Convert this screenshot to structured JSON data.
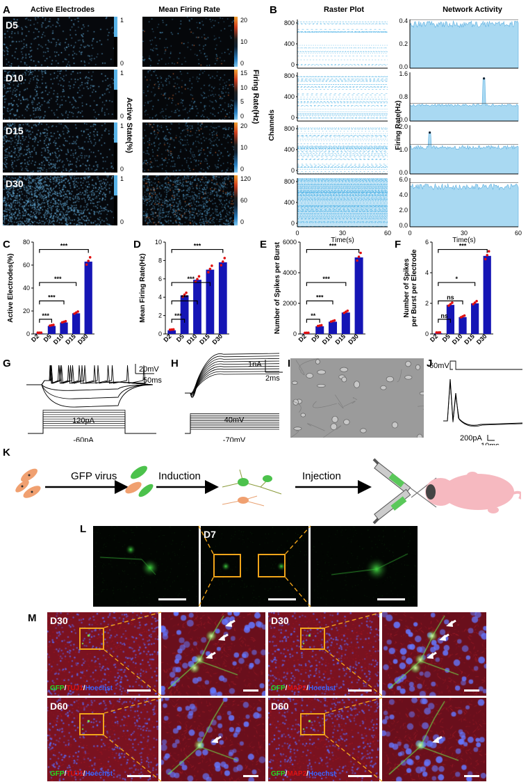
{
  "panels": {
    "A": {
      "letter": "A",
      "title_left": "Active Electrodes",
      "title_right": "Mean Firing Rate",
      "days": [
        "D5",
        "D10",
        "D15",
        "D30"
      ],
      "left_scale": {
        "top": "1",
        "bottom": "0",
        "axis_label": "Active State(%)"
      },
      "right_scales": [
        {
          "ticks": [
            "20",
            "10",
            "0"
          ]
        },
        {
          "ticks": [
            "15",
            "10",
            "5",
            "0"
          ]
        },
        {
          "ticks": [
            "20",
            "10",
            "0"
          ]
        },
        {
          "ticks": [
            "120",
            "60",
            "0"
          ]
        }
      ],
      "right_axis_label": "Firing Rate(Hz)"
    },
    "B": {
      "letter": "B",
      "title_left": "Raster Plot",
      "title_right": "Network Activity",
      "ylabel_left": "Channels",
      "ylabel_right": "Firing Rate(Hz)",
      "xlabel": "Time(s)",
      "raster_yticks": [
        "800",
        "400",
        "0"
      ],
      "x_ticks": [
        "0",
        "30",
        "60"
      ],
      "net_yticks": [
        [
          "0.4",
          "0.2",
          "0.0"
        ],
        [
          "1.6",
          "0.8",
          "0.0"
        ],
        [
          "2.0",
          "1.0",
          "0.0"
        ],
        [
          "6.0",
          "4.0",
          "2.0",
          "0.0"
        ]
      ]
    },
    "C": {
      "letter": "C"
    },
    "D": {
      "letter": "D"
    },
    "E": {
      "letter": "E"
    },
    "F": {
      "letter": "F"
    },
    "G": {
      "letter": "G",
      "scale_v": "20mV",
      "scale_t": "50ms",
      "step_high": "120pA",
      "step_low": "-60pA"
    },
    "H": {
      "letter": "H",
      "scale_i": "1nA",
      "scale_t": "2ms",
      "step_high": "40mV",
      "step_low": "-70mV"
    },
    "I": {
      "letter": "I"
    },
    "J": {
      "letter": "J",
      "voltage": "60mV",
      "scale_i": "200pA",
      "scale_t": "10ms"
    },
    "K": {
      "letter": "K",
      "step1": "GFP virus",
      "step2": "Induction",
      "step3": "Injection"
    },
    "L": {
      "letter": "L",
      "day": "D7"
    },
    "M": {
      "letter": "M",
      "tiles": [
        {
          "day": "D30",
          "stain": [
            "GFP",
            "/",
            "TUJ1",
            "/",
            "Hoechst"
          ]
        },
        {
          "day": "D30",
          "stain": [
            "GFP",
            "/",
            "MAP2",
            "/",
            "Hoechst"
          ]
        },
        {
          "day": "D60",
          "stain": [
            "GFP",
            "/",
            "TUJ1",
            "/",
            "Hoechst"
          ]
        },
        {
          "day": "D60",
          "stain": [
            "GFP",
            "/",
            "MAP2",
            "/",
            "Hoechst"
          ]
        }
      ]
    }
  },
  "colors": {
    "bar": "#1515b5",
    "dot": "#e01010",
    "raster": "#4fb3e6",
    "area": "#a9d9f2",
    "gfp": "#22dd22",
    "tuj1": "#e01010",
    "hoechst": "#3a64ff",
    "highlight": "#f2a51a"
  },
  "chart_data": [
    {
      "type": "bar",
      "panel": "C",
      "categories": [
        "D2",
        "D5",
        "D10",
        "D15",
        "D30"
      ],
      "values": [
        0.5,
        7,
        10,
        18,
        63
      ],
      "ylabel": "Active Electrodes(%)",
      "ylim": [
        0,
        80
      ],
      "yticks": [
        "0",
        "20",
        "40",
        "60",
        "80"
      ],
      "significance": [
        {
          "pair": [
            "D2",
            "D5"
          ],
          "label": "***"
        },
        {
          "pair": [
            "D2",
            "D10"
          ],
          "label": "***"
        },
        {
          "pair": [
            "D2",
            "D15"
          ],
          "label": "***"
        },
        {
          "pair": [
            "D2",
            "D30"
          ],
          "label": "***"
        }
      ]
    },
    {
      "type": "bar",
      "panel": "D",
      "categories": [
        "D2",
        "D5",
        "D10",
        "D15",
        "D30"
      ],
      "values": [
        0.4,
        4.2,
        5.9,
        7.0,
        7.8
      ],
      "ylabel": "Mean Firing Rate(Hz)",
      "ylim": [
        0,
        10
      ],
      "yticks": [
        "0",
        "2",
        "4",
        "6",
        "8",
        "10"
      ],
      "significance": [
        {
          "pair": [
            "D2",
            "D5"
          ],
          "label": "***"
        },
        {
          "pair": [
            "D2",
            "D10"
          ],
          "label": "***"
        },
        {
          "pair": [
            "D2",
            "D15"
          ],
          "label": "***"
        },
        {
          "pair": [
            "D2",
            "D30"
          ],
          "label": "***"
        }
      ]
    },
    {
      "type": "bar",
      "panel": "E",
      "categories": [
        "D2",
        "D5",
        "D10",
        "D15",
        "D30"
      ],
      "values": [
        30,
        500,
        800,
        1400,
        5000
      ],
      "ylabel": "Number of Spikes per Burst",
      "ylim": [
        0,
        6000
      ],
      "yticks": [
        "0",
        "2000",
        "4000",
        "6000"
      ],
      "significance": [
        {
          "pair": [
            "D2",
            "D5"
          ],
          "label": "**"
        },
        {
          "pair": [
            "D2",
            "D10"
          ],
          "label": "***"
        },
        {
          "pair": [
            "D2",
            "D15"
          ],
          "label": "***"
        },
        {
          "pair": [
            "D2",
            "D30"
          ],
          "label": "***"
        }
      ]
    },
    {
      "type": "bar",
      "panel": "F",
      "categories": [
        "D2",
        "D5",
        "D10",
        "D15",
        "D30"
      ],
      "values": [
        0.05,
        1.9,
        1.1,
        2.0,
        5.1
      ],
      "ylabel": [
        "Number of Spikes",
        "per Burst per Electrode"
      ],
      "ylim": [
        0,
        6
      ],
      "yticks": [
        "0",
        "2",
        "4",
        "6"
      ],
      "significance": [
        {
          "pair": [
            "D2",
            "D5"
          ],
          "label": "ns"
        },
        {
          "pair": [
            "D2",
            "D10"
          ],
          "label": "ns"
        },
        {
          "pair": [
            "D2",
            "D15"
          ],
          "label": "*"
        },
        {
          "pair": [
            "D2",
            "D30"
          ],
          "label": "***"
        }
      ]
    },
    {
      "type": "area",
      "panel": "B-net",
      "x_range": [
        0,
        60
      ],
      "series": [
        {
          "ylim": [
            0,
            0.4
          ],
          "baseline": 0.38
        },
        {
          "ylim": [
            0,
            1.6
          ],
          "baseline": 0.55,
          "spike": {
            "x": 41,
            "y": 1.4
          }
        },
        {
          "ylim": [
            0,
            2.0
          ],
          "baseline": 1.15,
          "spike": {
            "x": 11,
            "y": 1.7
          }
        },
        {
          "ylim": [
            0,
            6.0
          ],
          "baseline": 5.2
        }
      ]
    }
  ]
}
